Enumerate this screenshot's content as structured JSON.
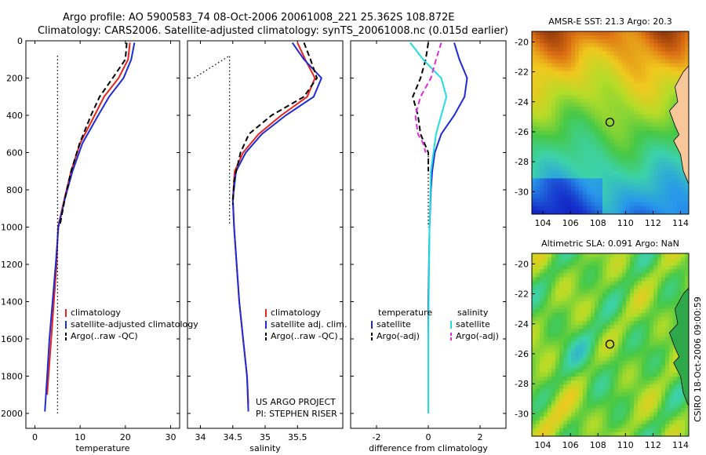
{
  "header": {
    "line1": "Argo profile: AO 5900583_74 08-Oct-2006 20061008_221 25.362S 108.872E",
    "line2": "Climatology: CARS2006. Satellite-adjusted climatology: synTS_20061008.nc (0.015d earlier)"
  },
  "colors": {
    "climatology": "#e8241c",
    "satellite": "#1c2bd6",
    "argo": "#000000",
    "satellite_salinity": "#22dde0",
    "argo_salinity": "#e22ae0"
  },
  "chart_data": [
    {
      "type": "line",
      "xlabel": "temperature",
      "ylabel": "",
      "xlim": [
        -2,
        32
      ],
      "ylim": [
        2080,
        0
      ],
      "xticks": [
        0,
        10,
        20,
        30
      ],
      "yticks": [
        0,
        200,
        400,
        600,
        800,
        1000,
        1200,
        1400,
        1600,
        1800,
        2000
      ],
      "legend": [
        "climatology",
        "satellite-adjusted climatology",
        "Argo(..raw -QC)"
      ],
      "series": [
        {
          "name": "climatology",
          "style": "solid",
          "color": "#e8241c",
          "x": [
            21.0,
            20.6,
            18.5,
            15.3,
            13.2,
            10.0,
            8.0,
            6.5,
            5.1,
            4.8,
            4.2,
            3.6,
            3.0,
            2.7
          ],
          "y": [
            10,
            100,
            200,
            300,
            400,
            550,
            700,
            850,
            1000,
            1200,
            1400,
            1600,
            1800,
            1900
          ]
        },
        {
          "name": "satellite-adjusted climatology",
          "style": "solid",
          "color": "#1c2bd6",
          "x": [
            22.0,
            21.3,
            19.6,
            16.4,
            14.0,
            10.5,
            8.3,
            6.6,
            5.2,
            4.6,
            3.9,
            3.2,
            2.7,
            2.2
          ],
          "y": [
            10,
            100,
            200,
            300,
            400,
            550,
            700,
            850,
            1000,
            1200,
            1400,
            1600,
            1800,
            1990
          ]
        },
        {
          "name": "Argo(..raw -QC)",
          "style": "dashed",
          "color": "#000000",
          "x": [
            20.3,
            20.0,
            17.2,
            14.3,
            12.4,
            9.9,
            8.0,
            6.6,
            5.6
          ],
          "y": [
            10,
            100,
            200,
            300,
            400,
            550,
            700,
            850,
            980
          ]
        },
        {
          "name": "",
          "style": "dotted",
          "color": "#000000",
          "x": [
            5.0,
            5.0,
            5.0,
            5.0
          ],
          "y": [
            80,
            800,
            1500,
            2000
          ]
        }
      ]
    },
    {
      "type": "line",
      "xlabel": "salinity",
      "ylabel": "",
      "xlim": [
        33.8,
        36.2
      ],
      "ylim": [
        2080,
        0
      ],
      "xticks": [
        34,
        34.5,
        35,
        35.5
      ],
      "legend": [
        "climatology",
        "satellite adj. clim.",
        "Argo(..raw -QC)"
      ],
      "series": [
        {
          "name": "climatology",
          "style": "solid",
          "color": "#e8241c",
          "x": [
            35.5,
            35.62,
            35.77,
            35.65,
            35.25,
            34.9,
            34.66,
            34.53,
            34.5,
            34.52,
            34.56,
            34.6,
            34.66,
            34.72,
            34.74
          ],
          "y": [
            10,
            100,
            200,
            300,
            400,
            500,
            600,
            700,
            850,
            1000,
            1200,
            1400,
            1600,
            1800,
            1950
          ]
        },
        {
          "name": "satellite adj. clim.",
          "style": "solid",
          "color": "#1c2bd6",
          "x": [
            35.42,
            35.6,
            35.87,
            35.75,
            35.32,
            34.95,
            34.7,
            34.55,
            34.5,
            34.52,
            34.56,
            34.6,
            34.66,
            34.72,
            34.74
          ],
          "y": [
            10,
            100,
            200,
            300,
            400,
            500,
            600,
            700,
            850,
            1000,
            1200,
            1400,
            1600,
            1800,
            1990
          ]
        },
        {
          "name": "Argo(..raw -QC)",
          "style": "dashed",
          "color": "#000000",
          "x": [
            35.6,
            35.7,
            35.8,
            35.6,
            35.1,
            34.75,
            34.62,
            34.52,
            34.5
          ],
          "y": [
            10,
            100,
            200,
            300,
            400,
            500,
            600,
            750,
            880
          ]
        },
        {
          "name": "",
          "style": "dotted",
          "color": "#000000",
          "x": [
            34.45,
            34.45,
            34.45,
            33.9
          ],
          "y": [
            980,
            500,
            80,
            200
          ]
        }
      ],
      "annotations": [
        "US ARGO PROJECT",
        "PI: STEPHEN RISER"
      ]
    },
    {
      "type": "line",
      "xlabel": "difference from climatology",
      "ylabel": "",
      "xlim": [
        -3,
        3
      ],
      "ylim": [
        2080,
        0
      ],
      "xticks": [
        -2,
        0,
        2
      ],
      "legend": [
        "temperature",
        "satellite",
        "Argo(-adj)",
        "salinity",
        "satellite",
        "Argo(-adj)"
      ],
      "series": [
        {
          "name": "temperature satellite",
          "style": "solid",
          "color": "#1c2bd6",
          "x": [
            1.0,
            1.2,
            1.5,
            1.4,
            1.0,
            0.5,
            0.25,
            0.15,
            0.1,
            0.05,
            0.0,
            0.0,
            0.0
          ],
          "y": [
            10,
            100,
            200,
            300,
            400,
            500,
            600,
            700,
            800,
            1000,
            1400,
            1800,
            2000
          ]
        },
        {
          "name": "temperature Argo(-adj)",
          "style": "dashed",
          "color": "#000000",
          "x": [
            0.0,
            -0.1,
            -0.3,
            -0.6,
            -0.4,
            -0.3,
            0.0,
            0.0
          ],
          "y": [
            10,
            100,
            200,
            300,
            400,
            500,
            600,
            700
          ]
        },
        {
          "name": "salinity satellite",
          "style": "solid",
          "color": "#22dde0",
          "x": [
            -0.7,
            -0.2,
            0.5,
            0.7,
            0.5,
            0.3,
            0.1,
            0.05,
            0.0,
            0.0
          ],
          "y": [
            10,
            100,
            200,
            300,
            400,
            500,
            700,
            1000,
            1600,
            2000
          ]
        },
        {
          "name": "salinity Argo(-adj)",
          "style": "dashed",
          "color": "#e22ae0",
          "x": [
            0.5,
            0.3,
            0.1,
            -0.3,
            -0.5,
            -0.4,
            -0.2,
            -0.1
          ],
          "y": [
            10,
            100,
            200,
            300,
            400,
            500,
            550,
            600
          ]
        },
        {
          "name": "",
          "style": "dotted",
          "color": "#000000",
          "x": [
            0,
            0
          ],
          "y": [
            600,
            1000
          ]
        }
      ]
    },
    {
      "type": "heatmap",
      "title": "AMSR-E SST: 21.3 Argo: 20.3",
      "xlim": [
        103.2,
        114.6
      ],
      "ylim": [
        -31.5,
        -19.3
      ],
      "xticks": [
        104,
        106,
        108,
        110,
        112,
        114
      ],
      "yticks": [
        -20,
        -22,
        -24,
        -26,
        -28,
        -30
      ],
      "marker": {
        "lon": 108.872,
        "lat": -25.362
      }
    },
    {
      "type": "heatmap",
      "title": "Altimetric SLA: 0.091 Argo: NaN",
      "xlim": [
        103.2,
        114.6
      ],
      "ylim": [
        -31.5,
        -19.3
      ],
      "xticks": [
        104,
        106,
        108,
        110,
        112,
        114
      ],
      "yticks": [
        -20,
        -22,
        -24,
        -26,
        -28,
        -30
      ],
      "marker": {
        "lon": 108.872,
        "lat": -25.362
      }
    }
  ],
  "side_text": "CSIRO 18-Oct-2006 09:00:59"
}
